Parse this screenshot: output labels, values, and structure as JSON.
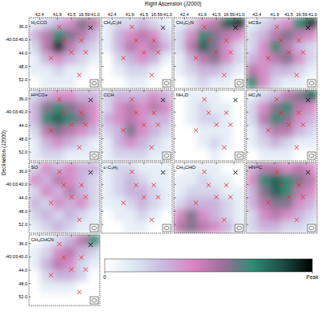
{
  "chart_data": {
    "type": "heatmap",
    "xlabel": "Right Ascension (J2000)",
    "ylabel": "Declination (J2000)",
    "xlim": [
      42.7,
      40.7
    ],
    "xticks": [
      42.4,
      41.9,
      41.5,
      {
        "value": 41.0,
        "label": "16:59:41.0"
      }
    ],
    "ylim": [
      33.4,
      54.6
    ],
    "yticks": [
      {
        "value": 36,
        "label": "36.0"
      },
      {
        "value": 40,
        "label": "-40:03:40.0"
      },
      {
        "value": 44,
        "label": "44.0"
      },
      {
        "value": 48,
        "label": "48.0"
      },
      {
        "value": 52,
        "label": "52.0"
      }
    ],
    "colorbar": {
      "lim": [
        0,
        1
      ],
      "ticks": [
        0,
        {
          "value": 1,
          "label": "Peak"
        }
      ],
      "colors": [
        "#ffffff",
        "#dbe7f3",
        "#c9b8de",
        "#d884c0",
        "#9c6f98",
        "#2f8a72",
        "#1b4d46",
        "#000000"
      ]
    },
    "markers": {
      "ra": [
        41.84,
        41.72,
        41.22,
        41.5,
        41.1,
        42.08,
        41.28,
        40.96
      ],
      "dec": [
        36.2,
        40.2,
        40.2,
        43.8,
        43.8,
        45.5,
        50.6,
        36.4
      ],
      "colors": [
        "#e03030",
        "#e03030",
        "#e03030",
        "#e03030",
        "#e03030",
        "#e03030",
        "#e03030",
        "#000000"
      ]
    },
    "panels": [
      {
        "title": "H₂CCO",
        "cells": [
          [
            0.1,
            0.2,
            0.3,
            0.4,
            0.6,
            0.5
          ],
          [
            0.3,
            0.5,
            0.7,
            0.6,
            0.5,
            0.3
          ],
          [
            0.2,
            0.5,
            0.9,
            0.5,
            0.3,
            0.2
          ],
          [
            0.1,
            0.3,
            0.4,
            0.3,
            0.2,
            0.1
          ],
          [
            0.1,
            0.1,
            0.2,
            0.1,
            0.1,
            0.0
          ],
          [
            0.0,
            0.1,
            0.1,
            0.1,
            0.0,
            0.0
          ]
        ]
      },
      {
        "title": "CH₃C₂H",
        "cells": [
          [
            0.1,
            0.2,
            0.2,
            0.3,
            0.2,
            0.1
          ],
          [
            0.1,
            0.3,
            0.4,
            0.5,
            0.4,
            0.2
          ],
          [
            0.1,
            0.3,
            0.5,
            0.4,
            0.5,
            0.3
          ],
          [
            0.0,
            0.2,
            0.3,
            0.4,
            0.3,
            0.1
          ],
          [
            0.0,
            0.1,
            0.2,
            0.2,
            0.1,
            0.0
          ],
          [
            0.0,
            0.0,
            0.1,
            0.1,
            0.0,
            0.0
          ]
        ]
      },
      {
        "title": "CH₃C₂N",
        "cells": [
          [
            0.1,
            0.2,
            0.4,
            0.5,
            0.8,
            0.9
          ],
          [
            0.2,
            0.4,
            0.7,
            0.6,
            0.5,
            0.4
          ],
          [
            0.2,
            0.5,
            0.8,
            0.6,
            0.4,
            0.2
          ],
          [
            0.1,
            0.3,
            0.5,
            0.6,
            0.4,
            0.2
          ],
          [
            0.1,
            0.2,
            0.3,
            0.3,
            0.2,
            0.1
          ],
          [
            0.0,
            0.1,
            0.2,
            0.1,
            0.1,
            0.0
          ]
        ]
      },
      {
        "title": "HCS+",
        "cells": [
          [
            0.1,
            0.2,
            0.3,
            0.4,
            0.7,
            0.9
          ],
          [
            0.2,
            0.3,
            0.5,
            0.6,
            0.5,
            0.4
          ],
          [
            0.2,
            0.4,
            0.7,
            0.5,
            0.3,
            0.2
          ],
          [
            0.3,
            0.4,
            0.5,
            0.6,
            0.4,
            0.2
          ],
          [
            0.5,
            0.4,
            0.3,
            0.3,
            0.2,
            0.1
          ],
          [
            0.7,
            0.4,
            0.2,
            0.1,
            0.1,
            0.0
          ]
        ]
      },
      {
        "title": "H¹³CO+",
        "cells": [
          [
            0.2,
            0.3,
            0.4,
            0.4,
            0.3,
            0.3
          ],
          [
            0.3,
            0.6,
            0.7,
            0.6,
            0.5,
            0.4
          ],
          [
            0.3,
            0.7,
            0.8,
            0.7,
            0.6,
            0.4
          ],
          [
            0.2,
            0.5,
            0.6,
            0.5,
            0.4,
            0.3
          ],
          [
            0.1,
            0.3,
            0.4,
            0.3,
            0.2,
            0.1
          ],
          [
            0.1,
            0.2,
            0.2,
            0.1,
            0.1,
            0.1
          ]
        ]
      },
      {
        "title": "CCH",
        "cells": [
          [
            0.2,
            0.3,
            0.3,
            0.3,
            0.4,
            0.3
          ],
          [
            0.2,
            0.4,
            0.5,
            0.4,
            0.5,
            0.4
          ],
          [
            0.3,
            0.4,
            0.5,
            0.4,
            0.3,
            0.3
          ],
          [
            0.2,
            0.3,
            0.6,
            0.4,
            0.3,
            0.2
          ],
          [
            0.1,
            0.3,
            0.4,
            0.3,
            0.2,
            0.1
          ],
          [
            0.1,
            0.2,
            0.2,
            0.2,
            0.1,
            0.1
          ]
        ]
      },
      {
        "title": "NH₂D",
        "cells": [
          [
            0.0,
            0.1,
            0.1,
            0.1,
            0.0,
            0.0
          ],
          [
            0.0,
            0.1,
            0.2,
            0.1,
            0.1,
            0.0
          ],
          [
            0.0,
            0.1,
            0.2,
            0.2,
            0.1,
            0.0
          ],
          [
            0.0,
            0.0,
            0.1,
            0.1,
            0.1,
            0.0
          ],
          [
            0.0,
            0.0,
            0.1,
            0.2,
            0.1,
            0.0
          ],
          [
            0.0,
            0.0,
            0.0,
            0.1,
            0.0,
            0.0
          ]
        ]
      },
      {
        "title": "HC₃N",
        "cells": [
          [
            0.1,
            0.2,
            0.3,
            0.5,
            0.6,
            0.8
          ],
          [
            0.2,
            0.4,
            0.6,
            0.7,
            0.5,
            0.4
          ],
          [
            0.2,
            0.5,
            0.7,
            0.6,
            0.4,
            0.3
          ],
          [
            0.1,
            0.3,
            0.5,
            0.5,
            0.3,
            0.2
          ],
          [
            0.1,
            0.2,
            0.3,
            0.2,
            0.1,
            0.1
          ],
          [
            0.0,
            0.1,
            0.1,
            0.1,
            0.0,
            0.0
          ]
        ]
      },
      {
        "title": "SO",
        "cells": [
          [
            0.2,
            0.4,
            0.3,
            0.4,
            0.3,
            0.3
          ],
          [
            0.4,
            0.3,
            0.5,
            0.4,
            0.3,
            0.2
          ],
          [
            0.2,
            0.4,
            0.3,
            0.5,
            0.3,
            0.2
          ],
          [
            0.3,
            0.2,
            0.4,
            0.3,
            0.4,
            0.2
          ],
          [
            0.2,
            0.3,
            0.2,
            0.3,
            0.2,
            0.1
          ],
          [
            0.1,
            0.2,
            0.3,
            0.2,
            0.1,
            0.1
          ]
        ]
      },
      {
        "title": "c-C₃H₂",
        "cells": [
          [
            0.1,
            0.2,
            0.2,
            0.1,
            0.1,
            0.1
          ],
          [
            0.1,
            0.2,
            0.3,
            0.2,
            0.1,
            0.1
          ],
          [
            0.1,
            0.2,
            0.3,
            0.3,
            0.2,
            0.1
          ],
          [
            0.1,
            0.1,
            0.2,
            0.3,
            0.2,
            0.1
          ],
          [
            0.0,
            0.1,
            0.1,
            0.2,
            0.1,
            0.0
          ],
          [
            0.0,
            0.0,
            0.1,
            0.1,
            0.0,
            0.0
          ]
        ]
      },
      {
        "title": "CH₃CHO",
        "cells": [
          [
            0.0,
            0.1,
            0.1,
            0.1,
            0.0,
            0.0
          ],
          [
            0.1,
            0.1,
            0.2,
            0.1,
            0.1,
            0.0
          ],
          [
            0.1,
            0.2,
            0.2,
            0.2,
            0.1,
            0.1
          ],
          [
            0.2,
            0.3,
            0.3,
            0.3,
            0.2,
            0.1
          ],
          [
            0.4,
            0.6,
            0.4,
            0.3,
            0.2,
            0.1
          ],
          [
            0.5,
            0.6,
            0.5,
            0.4,
            0.3,
            0.1
          ]
        ]
      },
      {
        "title": "HN¹³C",
        "cells": [
          [
            0.3,
            0.5,
            0.5,
            0.4,
            0.5,
            0.4
          ],
          [
            0.4,
            0.7,
            0.8,
            0.7,
            0.6,
            0.5
          ],
          [
            0.3,
            0.6,
            0.8,
            0.7,
            0.5,
            0.4
          ],
          [
            0.3,
            0.5,
            0.6,
            0.6,
            0.4,
            0.3
          ],
          [
            0.2,
            0.4,
            0.5,
            0.4,
            0.3,
            0.2
          ],
          [
            0.2,
            0.3,
            0.3,
            0.2,
            0.2,
            0.1
          ]
        ]
      },
      {
        "title": "CH₃CHCN",
        "cells": [
          [
            0.0,
            0.1,
            0.2,
            0.3,
            0.5,
            0.7
          ],
          [
            0.1,
            0.2,
            0.4,
            0.5,
            0.3,
            0.2
          ],
          [
            0.1,
            0.3,
            0.5,
            0.4,
            0.2,
            0.1
          ],
          [
            0.0,
            0.2,
            0.3,
            0.3,
            0.2,
            0.0
          ],
          [
            0.0,
            0.1,
            0.1,
            0.1,
            0.0,
            0.0
          ],
          [
            0.0,
            0.0,
            0.0,
            0.0,
            0.0,
            0.0
          ]
        ]
      }
    ]
  }
}
